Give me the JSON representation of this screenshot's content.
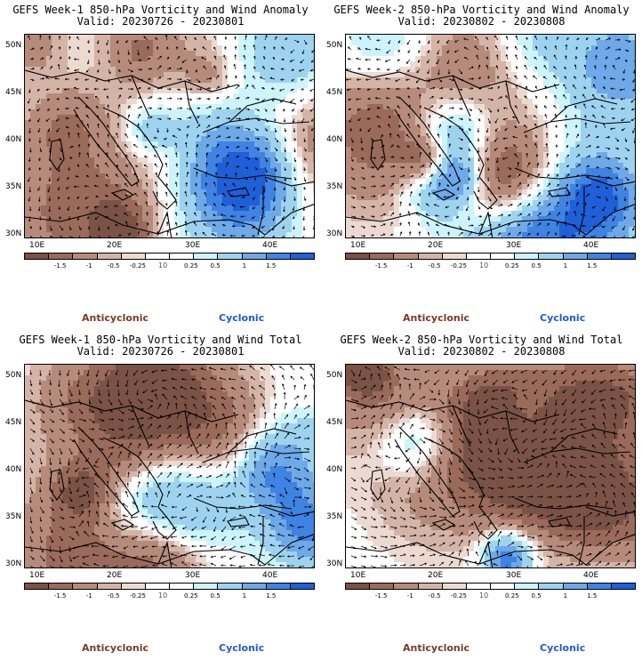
{
  "panels": [
    {
      "id": "p1",
      "title_line1": "GEFS Week-1 850-hPa Vorticity and Wind Anomaly",
      "title_line2": "Valid: 20230726 - 20230801",
      "field": "anomaly"
    },
    {
      "id": "p2",
      "title_line1": "GEFS Week-2 850-hPa Vorticity and Wind Anomaly",
      "title_line2": "Valid: 20230802 - 20230808",
      "field": "anomaly"
    },
    {
      "id": "p3",
      "title_line1": "GEFS Week-1 850-hPa Vorticity and Wind Total",
      "title_line2": "Valid: 20230726 - 20230801",
      "field": "total"
    },
    {
      "id": "p4",
      "title_line1": "GEFS Week-2 850-hPa Vorticity and Wind Total",
      "title_line2": "Valid: 20230802 - 20230808",
      "field": "total"
    }
  ],
  "lat_labels": [
    "50N",
    "45N",
    "40N",
    "35N",
    "30N"
  ],
  "lon_labels": [
    "10E",
    "20E",
    "30E",
    "40E"
  ],
  "colorbar": {
    "labels": [
      "-1.5",
      "-1",
      "-0.5",
      "-0.25",
      "0.25",
      "0.5",
      "1",
      "1.5"
    ],
    "unit": "10",
    "colors": [
      "#7a5246",
      "#9a6a5a",
      "#b68b7b",
      "#d5b4a8",
      "#ecdad2",
      "#ffffff",
      "#ffffff",
      "#cdf4fb",
      "#9ed3f0",
      "#6ea9e8",
      "#3f83e3",
      "#1f5fd8"
    ]
  },
  "legend": {
    "anticyclonic": "Anticyclonic",
    "cyclonic": "Cyclonic"
  }
}
